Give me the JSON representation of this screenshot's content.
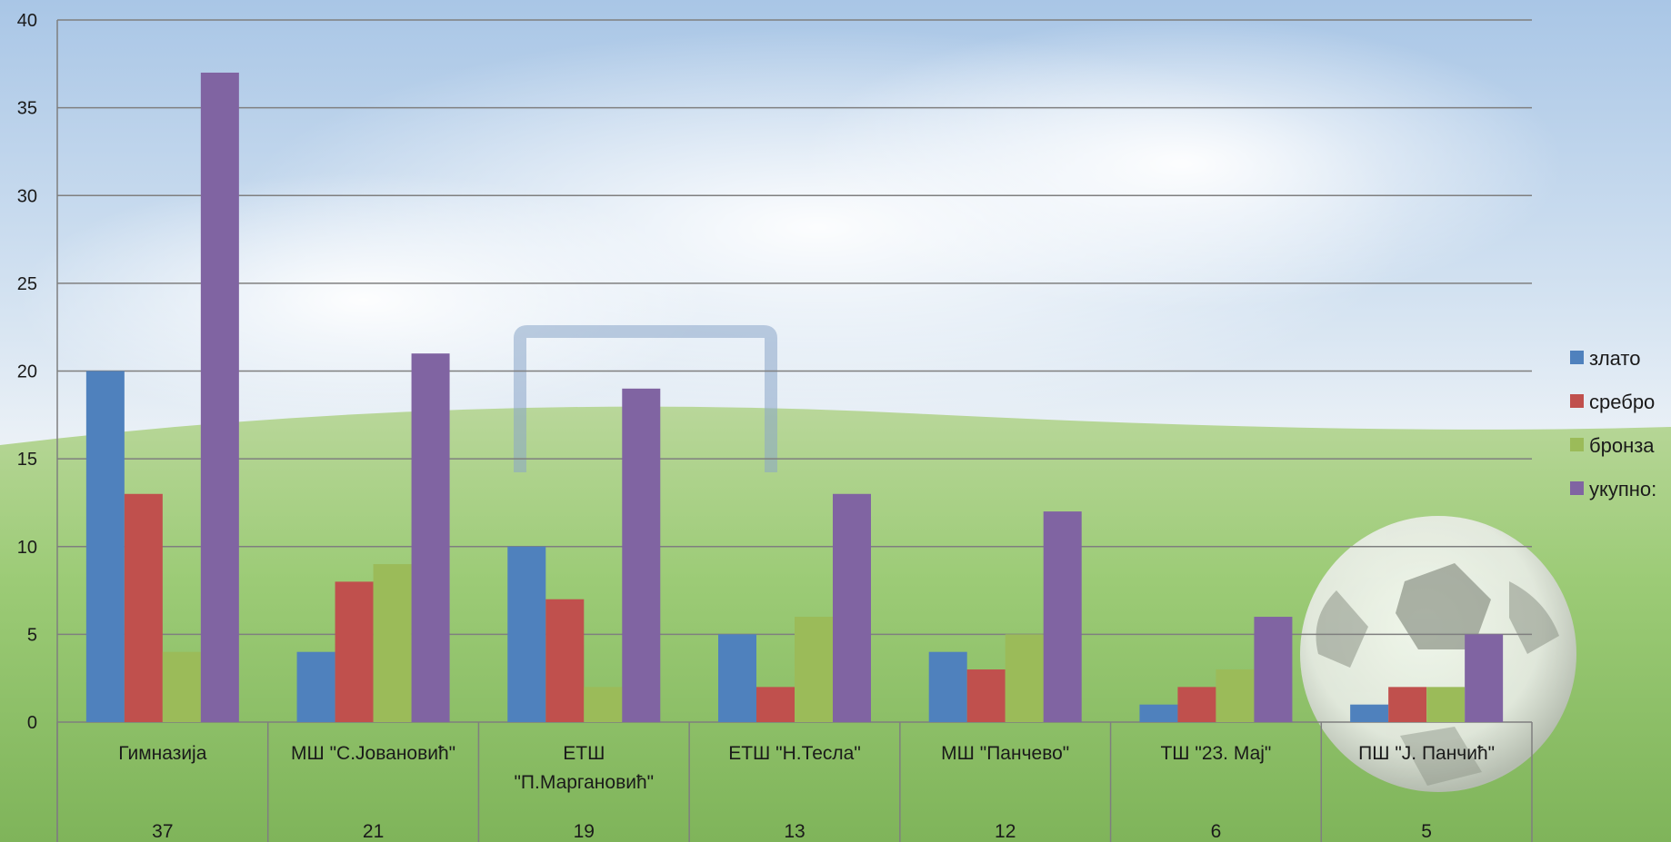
{
  "chart_data": {
    "type": "bar",
    "categories": [
      [
        "Гимназија"
      ],
      [
        "МШ \"С.Јовановић\""
      ],
      [
        "ЕТШ",
        "\"П.Маргановић\""
      ],
      [
        "ЕТШ \"Н.Тесла\""
      ],
      [
        "МШ \"Панчево\""
      ],
      [
        "ТШ \"23. Мај\""
      ],
      [
        "ПШ \"Ј. Панчић\""
      ]
    ],
    "series": [
      {
        "name": "злато",
        "color": "#4F81BD",
        "values": [
          20,
          4,
          10,
          5,
          4,
          1,
          1
        ]
      },
      {
        "name": "сребро",
        "color": "#C0504D",
        "values": [
          13,
          8,
          7,
          2,
          3,
          2,
          2
        ]
      },
      {
        "name": "бронза",
        "color": "#9BBB59",
        "values": [
          4,
          9,
          2,
          6,
          5,
          3,
          2
        ]
      },
      {
        "name": "укупно:",
        "color": "#8064A2",
        "values": [
          37,
          21,
          19,
          13,
          12,
          6,
          5
        ]
      }
    ],
    "table_row": [
      "37",
      "21",
      "19",
      "13",
      "12",
      "6",
      "5"
    ],
    "ylim": [
      0,
      40
    ],
    "yticks": [
      0,
      5,
      10,
      15,
      20,
      25,
      30,
      35,
      40
    ],
    "grid": true,
    "legend_position": "right",
    "title": "",
    "xlabel": "",
    "ylabel": ""
  }
}
